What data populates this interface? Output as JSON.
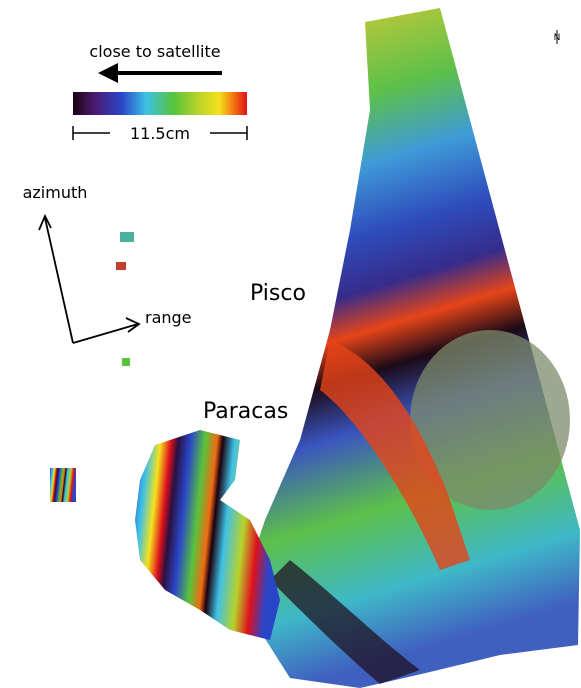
{
  "legend": {
    "direction_label": "close to satellite",
    "scale_label": "11.5cm"
  },
  "axes": {
    "azimuth": "azimuth",
    "range": "range"
  },
  "places": [
    {
      "label": "Pisco"
    },
    {
      "label": "Paracas"
    }
  ],
  "north": "N"
}
